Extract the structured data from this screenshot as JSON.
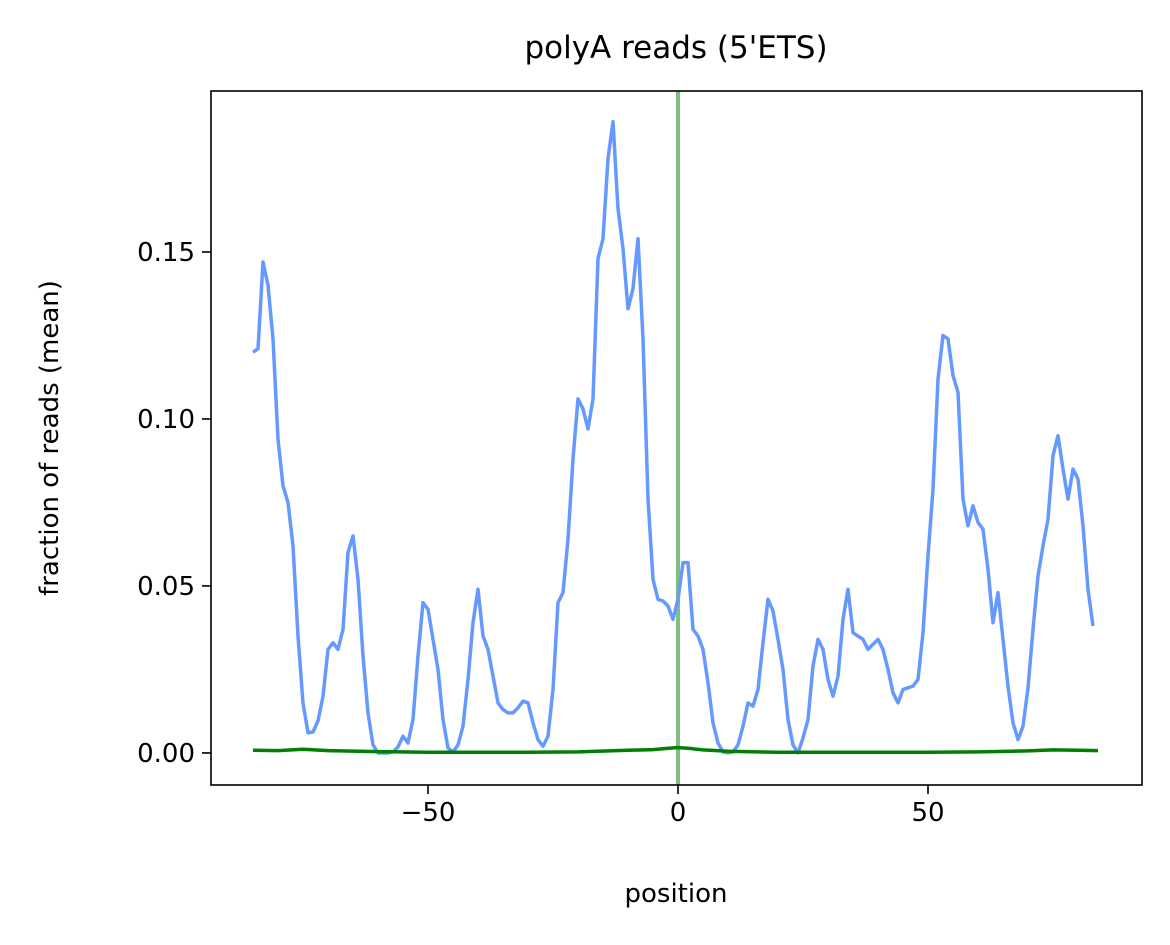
{
  "chart_data": {
    "type": "line",
    "title": "polyA reads (5'ETS)",
    "x_label": "position",
    "y_label": "fraction of reads (mean)",
    "xlim": [
      -93.4,
      92.8
    ],
    "ylim": [
      -0.0096,
      0.1982
    ],
    "xticks": [
      {
        "value": -50,
        "label": "−50"
      },
      0,
      50
    ],
    "yticks": [
      {
        "value": 0,
        "label": "0.00"
      },
      {
        "value": 0.05,
        "label": "0.05"
      },
      {
        "value": 0.1,
        "label": "0.10"
      },
      {
        "value": 0.15,
        "label": "0.15"
      }
    ],
    "vline": {
      "x": 0,
      "color": "#7fbf7f"
    },
    "series": [
      {
        "color": "#6699ff",
        "x": [
          -85,
          -84,
          -83,
          -82,
          -81,
          -80,
          -79,
          -78,
          -77,
          -76,
          -75,
          -74,
          -73,
          -72,
          -71,
          -70,
          -69,
          -68,
          -67,
          -66,
          -65,
          -64,
          -63,
          -62,
          -61,
          -60,
          -59,
          -58,
          -57,
          -56,
          -55,
          -54,
          -53,
          -52,
          -51,
          -50,
          -49,
          -48,
          -47,
          -46,
          -45,
          -44,
          -43,
          -42,
          -41,
          -40,
          -39,
          -38,
          -37,
          -36,
          -35,
          -34,
          -33,
          -32,
          -31,
          -30,
          -29,
          -28,
          -27,
          -26,
          -25,
          -24,
          -23,
          -22,
          -21,
          -20,
          -19,
          -18,
          -17,
          -16,
          -15,
          -14,
          -13,
          -12,
          -11,
          -10,
          -9,
          -8,
          -7,
          -6,
          -5,
          -4,
          -3,
          -2,
          -1,
          0,
          1,
          2,
          3,
          4,
          5,
          6,
          7,
          8,
          9,
          10,
          11,
          12,
          13,
          14,
          15,
          16,
          17,
          18,
          19,
          20,
          21,
          22,
          23,
          24,
          25,
          26,
          27,
          28,
          29,
          30,
          31,
          32,
          33,
          34,
          35,
          36,
          37,
          38,
          39,
          40,
          41,
          42,
          43,
          44,
          45,
          46,
          47,
          48,
          49,
          50,
          51,
          52,
          53,
          54,
          55,
          56,
          57,
          58,
          59,
          60,
          61,
          62,
          63,
          64,
          65,
          66,
          67,
          68,
          69,
          70,
          71,
          72,
          73,
          74,
          75,
          76,
          77,
          78,
          79,
          80,
          81,
          82,
          83
        ],
        "values": [
          0.12,
          0.121,
          0.147,
          0.14,
          0.124,
          0.094,
          0.08,
          0.075,
          0.062,
          0.035,
          0.015,
          0.006,
          0.0063,
          0.0096,
          0.017,
          0.031,
          0.033,
          0.031,
          0.037,
          0.06,
          0.065,
          0.052,
          0.029,
          0.012,
          0.0024,
          0.0,
          0.0,
          0.0,
          0.0003,
          0.0018,
          0.005,
          0.003,
          0.01,
          0.029,
          0.045,
          0.043,
          0.034,
          0.025,
          0.01,
          0.0015,
          0.0003,
          0.0024,
          0.008,
          0.022,
          0.039,
          0.049,
          0.035,
          0.031,
          0.023,
          0.015,
          0.013,
          0.012,
          0.012,
          0.0135,
          0.0155,
          0.015,
          0.009,
          0.004,
          0.002,
          0.005,
          0.019,
          0.045,
          0.048,
          0.064,
          0.088,
          0.106,
          0.103,
          0.097,
          0.106,
          0.148,
          0.154,
          0.178,
          0.189,
          0.163,
          0.151,
          0.133,
          0.139,
          0.154,
          0.124,
          0.076,
          0.052,
          0.046,
          0.0455,
          0.044,
          0.04,
          0.046,
          0.057,
          0.057,
          0.037,
          0.035,
          0.031,
          0.021,
          0.009,
          0.003,
          0.0003,
          0.0,
          0.0003,
          0.0024,
          0.008,
          0.015,
          0.014,
          0.019,
          0.033,
          0.046,
          0.0425,
          0.034,
          0.025,
          0.01,
          0.0024,
          0.0,
          0.0045,
          0.01,
          0.026,
          0.034,
          0.031,
          0.022,
          0.017,
          0.023,
          0.04,
          0.049,
          0.036,
          0.035,
          0.034,
          0.031,
          0.0325,
          0.034,
          0.031,
          0.025,
          0.018,
          0.015,
          0.019,
          0.0195,
          0.02,
          0.022,
          0.036,
          0.059,
          0.079,
          0.112,
          0.125,
          0.124,
          0.113,
          0.108,
          0.076,
          0.068,
          0.074,
          0.069,
          0.067,
          0.055,
          0.039,
          0.048,
          0.034,
          0.02,
          0.009,
          0.004,
          0.008,
          0.0195,
          0.037,
          0.053,
          0.062,
          0.07,
          0.089,
          0.095,
          0.085,
          0.076,
          0.085,
          0.082,
          0.068,
          0.049,
          0.038
        ]
      },
      {
        "color": "#008000",
        "x": [
          -85,
          -80,
          -75,
          -70,
          -60,
          -50,
          -40,
          -30,
          -20,
          -10,
          -5,
          -1,
          0,
          2,
          5,
          10,
          20,
          30,
          40,
          50,
          60,
          70,
          75,
          80,
          84
        ],
        "values": [
          0.0008,
          0.0007,
          0.0011,
          0.0007,
          0.0004,
          0.0002,
          0.0002,
          0.0002,
          0.0003,
          0.0008,
          0.001,
          0.0015,
          0.0016,
          0.0014,
          0.0009,
          0.0005,
          0.0002,
          0.0002,
          0.0002,
          0.0002,
          0.0003,
          0.0006,
          0.0009,
          0.0008,
          0.0007
        ]
      }
    ]
  }
}
